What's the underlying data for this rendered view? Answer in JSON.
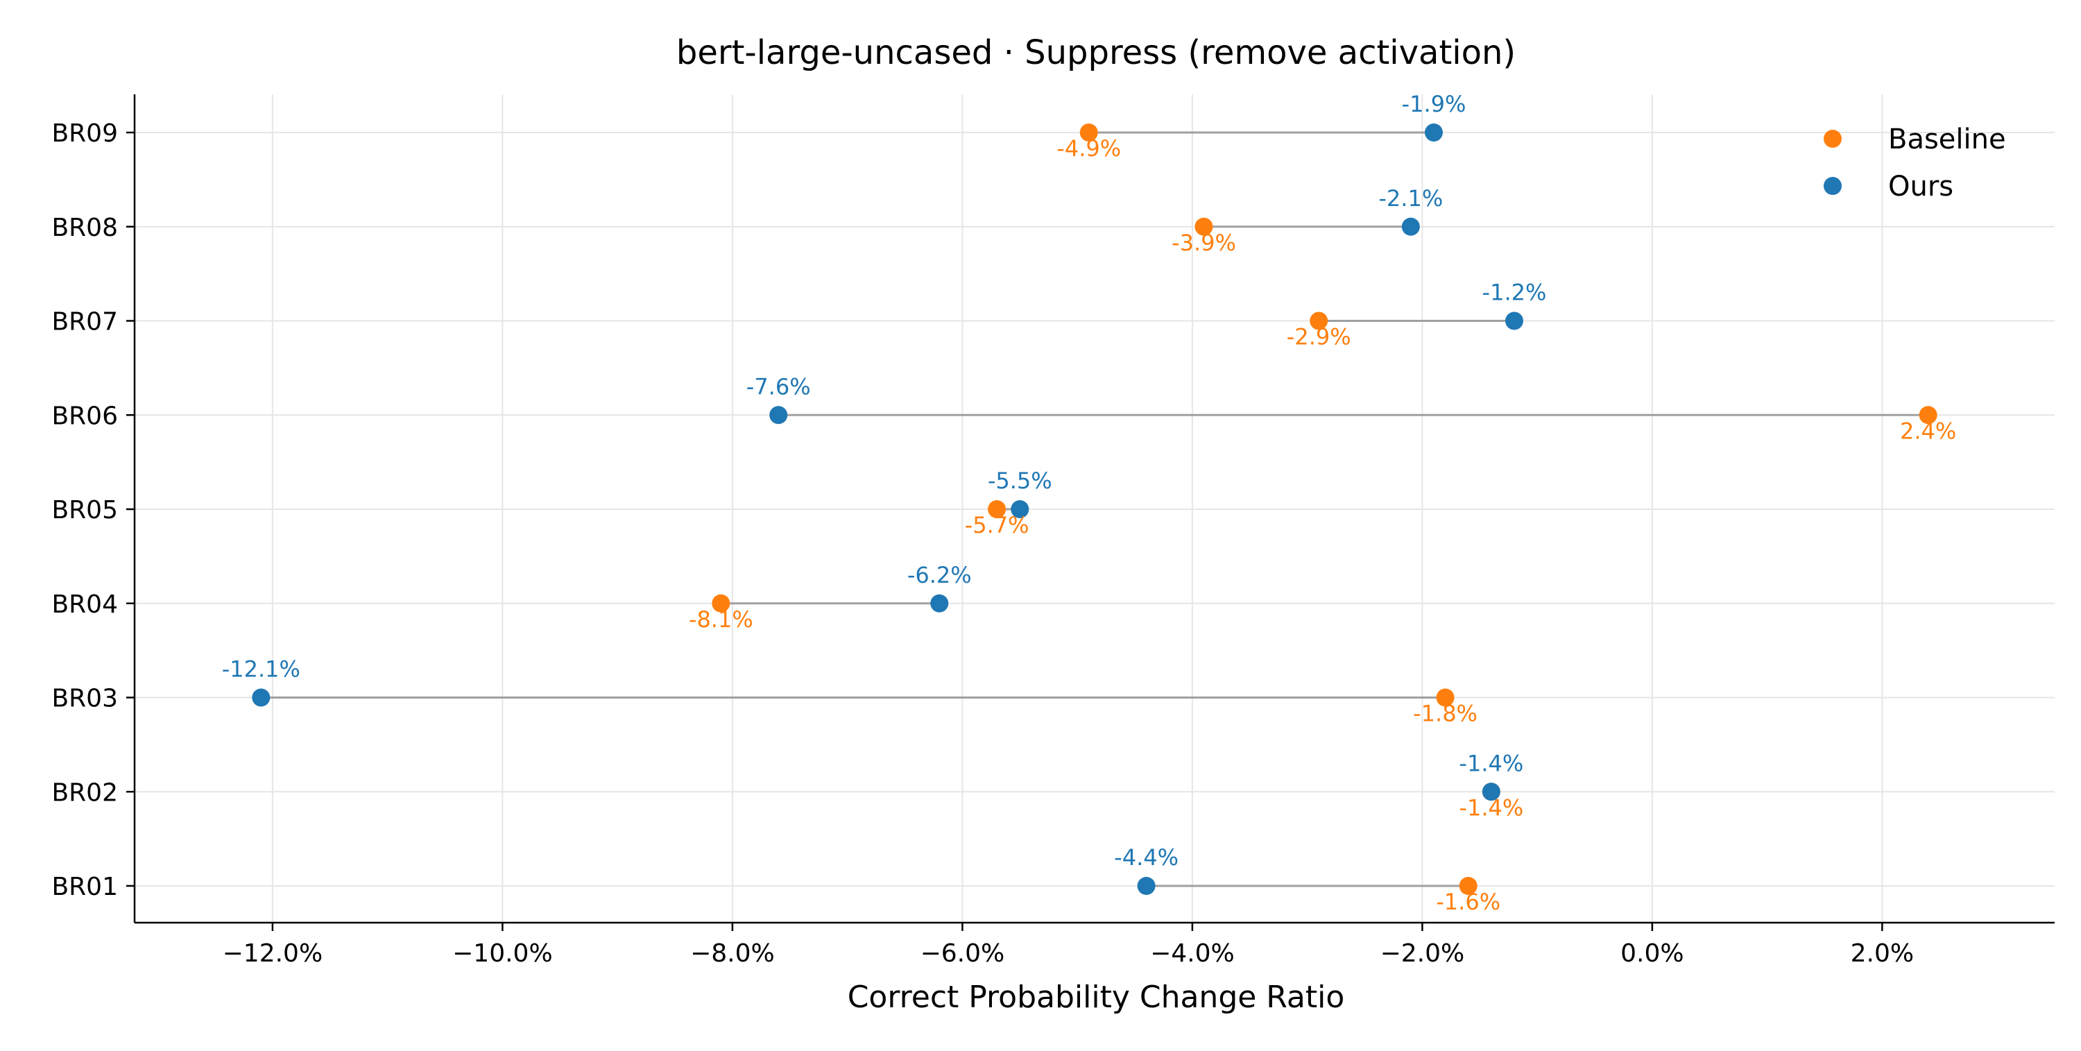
{
  "chart_data": {
    "type": "dumbbell",
    "title": "bert-large-uncased · Suppress (remove activation)",
    "xlabel": "Correct Probability Change Ratio",
    "ylabel": "",
    "xlim": [
      -13.2,
      3.5
    ],
    "x_ticks": [
      -12,
      -10,
      -8,
      -6,
      -4,
      -2,
      0,
      2
    ],
    "x_tick_labels": [
      "−12.0%",
      "−10.0%",
      "−8.0%",
      "−6.0%",
      "−4.0%",
      "−2.0%",
      "0.0%",
      "2.0%"
    ],
    "categories": [
      "BR01",
      "BR02",
      "BR03",
      "BR04",
      "BR05",
      "BR06",
      "BR07",
      "BR08",
      "BR09"
    ],
    "series": [
      {
        "name": "Baseline",
        "color": "#ff7f0e",
        "values": [
          -1.6,
          -1.4,
          -1.8,
          -8.1,
          -5.7,
          2.4,
          -2.9,
          -3.9,
          -4.9
        ],
        "labels": [
          "-1.6%",
          "-1.4%",
          "-1.8%",
          "-8.1%",
          "-5.7%",
          "2.4%",
          "-2.9%",
          "-3.9%",
          "-4.9%"
        ]
      },
      {
        "name": "Ours",
        "color": "#1f77b4",
        "values": [
          -4.4,
          -1.4,
          -12.1,
          -6.2,
          -5.5,
          -7.6,
          -1.2,
          -2.1,
          -1.9
        ],
        "labels": [
          "-4.4%",
          "-1.4%",
          "-12.1%",
          "-6.2%",
          "-5.5%",
          "-7.6%",
          "-1.2%",
          "-2.1%",
          "-1.9%"
        ]
      }
    ],
    "connector_color": "#a0a0a0",
    "grid": true,
    "legend_position": "top-right"
  }
}
